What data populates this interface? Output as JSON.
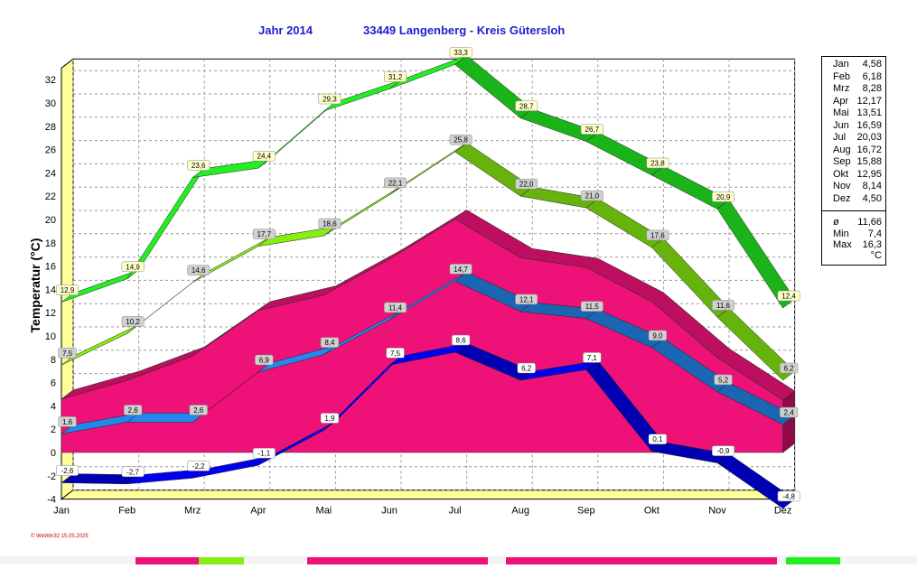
{
  "header": {
    "title_year": "Jahr  2014",
    "title_place": "33449 Langenberg - Kreis Gütersloh"
  },
  "chart_data": {
    "type": "line",
    "categories": [
      "Jan",
      "Feb",
      "Mrz",
      "Apr",
      "Mai",
      "Jun",
      "Jul",
      "Aug",
      "Sep",
      "Okt",
      "Nov",
      "Dez"
    ],
    "ylabel": "Temperatur  (°C)",
    "ylim": [
      -4,
      33
    ],
    "yticks": [
      "32",
      "30",
      "28",
      "26",
      "24",
      "22",
      "20",
      "18",
      "16",
      "14",
      "12",
      "10",
      "8",
      "6",
      "4",
      "2",
      "0",
      "-2",
      "-4"
    ],
    "grid": true,
    "legend_position": "right",
    "series": [
      {
        "role": "absolute_max",
        "color": "#22ee22",
        "values": [
          12.9,
          14.9,
          23.6,
          24.4,
          29.3,
          31.2,
          33.3,
          28.7,
          26.7,
          23.8,
          20.9,
          12.4
        ],
        "labels": [
          "12,9",
          "14,9",
          "23,6",
          "24,4",
          "29,3",
          "31,2",
          "33,3",
          "28,7",
          "26,7",
          "23,8",
          "20,9",
          "12,4"
        ]
      },
      {
        "role": "mean_max",
        "color": "#88ee11",
        "values": [
          7.5,
          10.2,
          14.6,
          17.7,
          18.6,
          22.1,
          25.8,
          22.0,
          21.0,
          17.6,
          11.6,
          6.2
        ],
        "labels": [
          "7,5",
          "10,2",
          "14,6",
          "17,7",
          "18,6",
          "22,1",
          "25,8",
          "22,0",
          "21,0",
          "17,6",
          "11,6",
          "6,2"
        ]
      },
      {
        "role": "monthly_mean_area",
        "color": "#ee1177",
        "values": [
          4.58,
          6.18,
          8.28,
          12.17,
          13.51,
          16.59,
          20.03,
          16.72,
          15.88,
          12.95,
          8.14,
          4.5
        ]
      },
      {
        "role": "mean_min",
        "color": "#2288ee",
        "values": [
          1.6,
          2.6,
          2.6,
          6.9,
          8.4,
          11.4,
          14.7,
          12.1,
          11.5,
          9.0,
          5.2,
          2.4
        ],
        "labels": [
          "1,6",
          "2,6",
          "2,6",
          "6,9",
          "8,4",
          "11,4",
          "14,7",
          "12,1",
          "11,5",
          "9,0",
          "5,2",
          "2,4"
        ]
      },
      {
        "role": "absolute_min",
        "color": "#0000ee",
        "values": [
          -2.6,
          -2.7,
          -2.2,
          -1.1,
          1.9,
          7.5,
          8.6,
          6.2,
          7.1,
          0.1,
          -0.9,
          -4.8
        ],
        "labels": [
          "-2,6",
          "-2,7",
          "-2,2",
          "-1,1",
          "1,9",
          "7,5",
          "8,6",
          "6,2",
          "7,1",
          "0,1",
          "-0,9",
          "-4,8"
        ]
      }
    ]
  },
  "legend": {
    "months": [
      {
        "m": "Jan",
        "v": "4,58"
      },
      {
        "m": "Feb",
        "v": "6,18"
      },
      {
        "m": "Mrz",
        "v": "8,28"
      },
      {
        "m": "Apr",
        "v": "12,17"
      },
      {
        "m": "Mai",
        "v": "13,51"
      },
      {
        "m": "Jun",
        "v": "16,59"
      },
      {
        "m": "Jul",
        "v": "20,03"
      },
      {
        "m": "Aug",
        "v": "16,72"
      },
      {
        "m": "Sep",
        "v": "15,88"
      },
      {
        "m": "Okt",
        "v": "12,95"
      },
      {
        "m": "Nov",
        "v": "8,14"
      },
      {
        "m": "Dez",
        "v": "4,50"
      }
    ],
    "stats": [
      {
        "m": "ø",
        "v": "11,66"
      },
      {
        "m": "Min",
        "v": "7,4"
      },
      {
        "m": "Max",
        "v": "16,3"
      }
    ],
    "unit": "°C"
  },
  "footer": {
    "stamp": "© WeWin32  15.05.2025"
  }
}
